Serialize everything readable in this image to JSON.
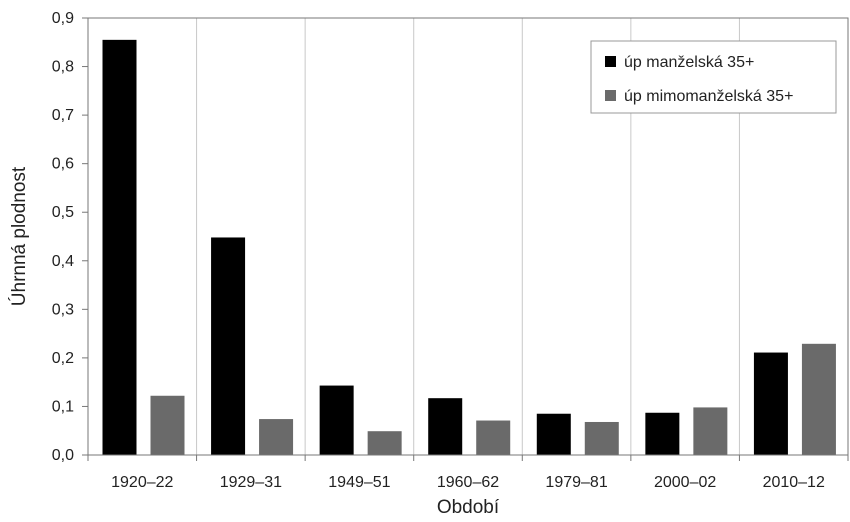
{
  "chart_data": {
    "type": "bar",
    "title": "",
    "xlabel": "Období",
    "ylabel": "Úhrnná plodnost",
    "categories": [
      "1920–22",
      "1929–31",
      "1949–51",
      "1960–62",
      "1979–81",
      "2000–02",
      "2010–12"
    ],
    "series": [
      {
        "name": "úp manželská 35+",
        "color": "#000000",
        "values": [
          0.855,
          0.448,
          0.143,
          0.117,
          0.085,
          0.087,
          0.211
        ]
      },
      {
        "name": "úp mimomanželská 35+",
        "color": "#6a6a6a",
        "values": [
          0.122,
          0.074,
          0.049,
          0.071,
          0.068,
          0.098,
          0.229
        ]
      }
    ],
    "ylim": [
      0,
      0.9
    ],
    "yticks": [
      "0,0",
      "0,1",
      "0,2",
      "0,3",
      "0,4",
      "0,5",
      "0,6",
      "0,7",
      "0,8",
      "0,9"
    ],
    "grid": "vertical",
    "legend_position": "top-right"
  }
}
